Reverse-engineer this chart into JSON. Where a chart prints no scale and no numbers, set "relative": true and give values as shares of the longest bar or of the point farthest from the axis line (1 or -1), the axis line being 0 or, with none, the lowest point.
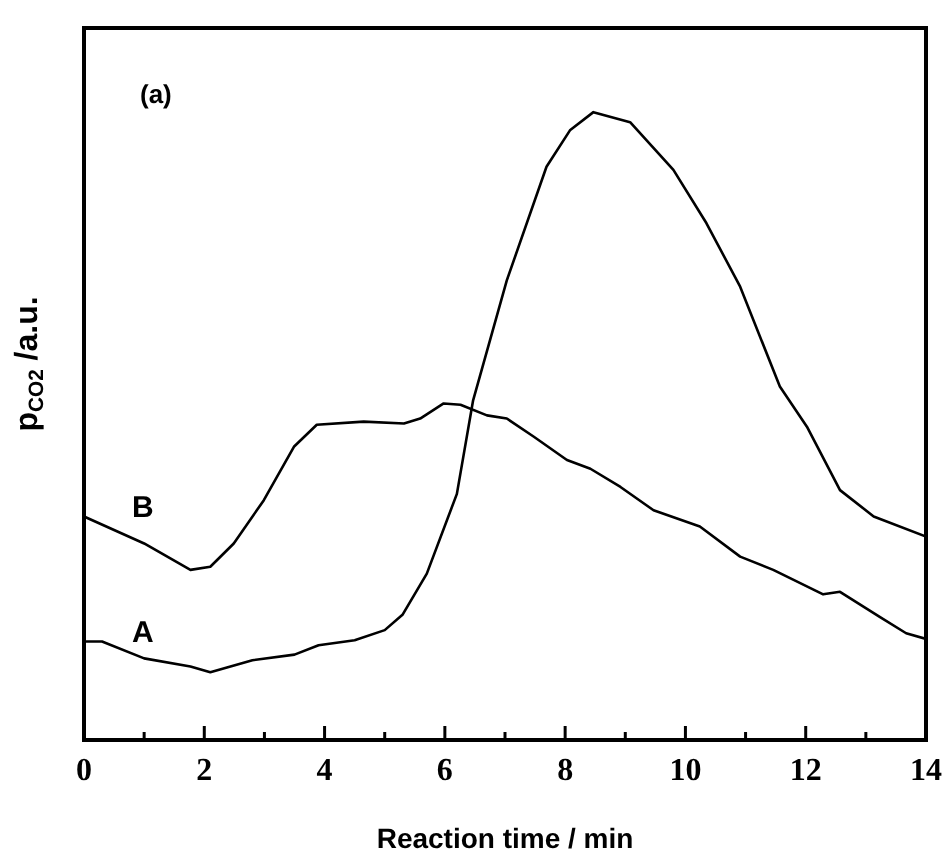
{
  "chart_data": {
    "type": "line",
    "relative": true,
    "xlabel": "Reaction time / min",
    "ylabel": "p$_{CO2}$ /a.u.",
    "annotations": [
      "(a)"
    ],
    "xlim": [
      0,
      14
    ],
    "xticks": [
      0,
      {
        "value": 1,
        "label": null
      },
      2,
      {
        "value": 3,
        "label": null
      },
      4,
      {
        "value": 5,
        "label": null
      },
      6,
      {
        "value": 7,
        "label": null
      },
      8,
      {
        "value": 9,
        "label": null
      },
      10,
      {
        "value": 11,
        "label": null
      },
      12,
      {
        "value": 13,
        "label": null
      },
      14
    ],
    "legend": false,
    "marker": "none",
    "line_style": "solid",
    "series": [
      {
        "name": "A",
        "color": "#000000",
        "x": [
          0,
          0.3,
          1.0,
          1.77,
          2.1,
          2.8,
          3.5,
          3.9,
          4.5,
          5.0,
          5.3,
          5.7,
          6.2,
          6.47,
          7.03,
          7.69,
          8.08,
          8.47,
          9.08,
          9.8,
          10.35,
          10.91,
          11.57,
          12.02,
          12.57,
          13.13,
          14.0
        ],
        "values": [
          0.157,
          0.157,
          0.13,
          0.117,
          0.108,
          0.127,
          0.136,
          0.151,
          0.159,
          0.175,
          0.2,
          0.265,
          0.392,
          0.541,
          0.732,
          0.913,
          0.971,
          1,
          0.984,
          0.908,
          0.823,
          0.722,
          0.563,
          0.499,
          0.398,
          0.356,
          0.324
        ]
      },
      {
        "name": "B",
        "color": "#000000",
        "x": [
          0,
          1.0,
          1.77,
          2.1,
          2.49,
          2.99,
          3.49,
          3.87,
          4.65,
          5.32,
          5.59,
          5.98,
          6.26,
          6.7,
          7.03,
          7.48,
          8.03,
          8.42,
          8.92,
          9.47,
          10.24,
          10.91,
          11.46,
          12.29,
          12.57,
          13.23,
          13.67,
          14.0
        ],
        "values": [
          0.356,
          0.313,
          0.271,
          0.276,
          0.313,
          0.382,
          0.467,
          0.502,
          0.507,
          0.504,
          0.512,
          0.536,
          0.534,
          0.517,
          0.512,
          0.483,
          0.446,
          0.432,
          0.403,
          0.366,
          0.34,
          0.292,
          0.271,
          0.232,
          0.236,
          0.196,
          0.17,
          0.161
        ]
      }
    ]
  }
}
